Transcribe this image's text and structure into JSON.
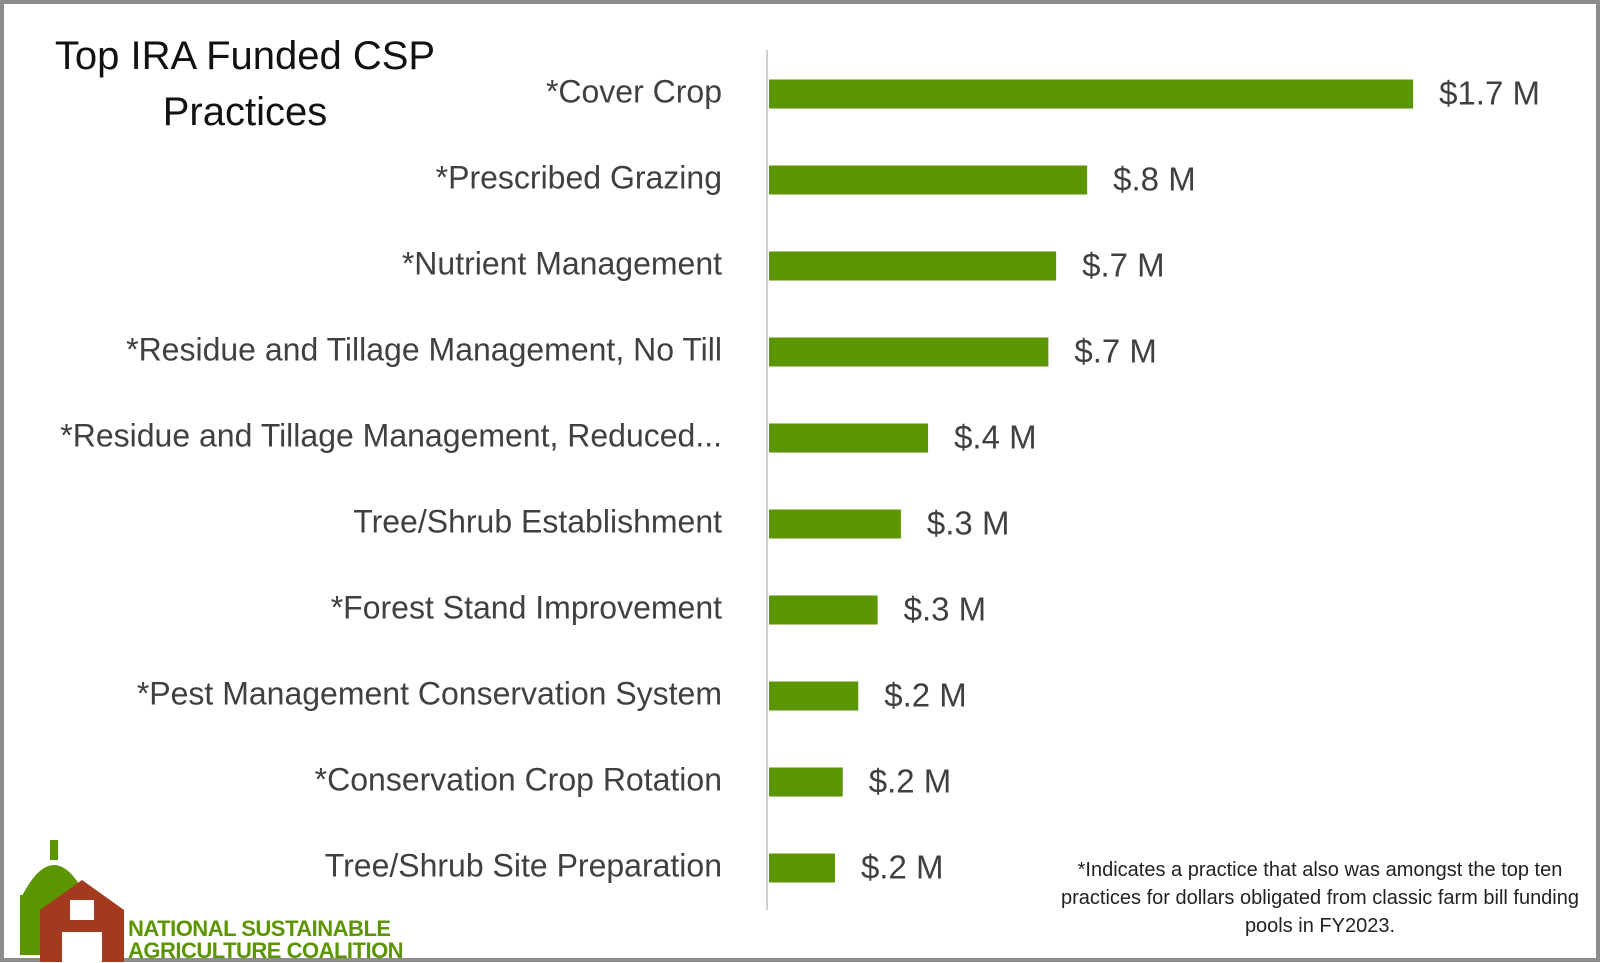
{
  "chart_data": {
    "type": "bar",
    "orientation": "horizontal",
    "title": "Top IRA Funded CSP Practices",
    "categories": [
      "*Cover Crop",
      "*Prescribed Grazing",
      "*Nutrient Management",
      "*Residue and Tillage Management, No Till",
      "*Residue and Tillage Management, Reduced...",
      "Tree/Shrub Establishment",
      "*Forest Stand Improvement",
      "*Pest Management Conservation System",
      "*Conservation Crop Rotation",
      "Tree/Shrub Site Preparation"
    ],
    "values": [
      1.66,
      0.82,
      0.74,
      0.72,
      0.41,
      0.34,
      0.28,
      0.23,
      0.19,
      0.17
    ],
    "value_labels": [
      "$1.7 M",
      "$.8 M",
      "$.7 M",
      "$.7 M",
      "$.4 M",
      "$.3 M",
      "$.3 M",
      "$.2 M",
      "$.2 M",
      "$.2 M"
    ],
    "color": "#5b9500",
    "footnote": "*Indicates a practice that also was amongst the top ten practices for dollars obligated from classic farm bill funding pools in FY2023.",
    "logo": {
      "line1": "NATIONAL SUSTAINABLE",
      "line2": "AGRICULTURE COALITION"
    }
  }
}
